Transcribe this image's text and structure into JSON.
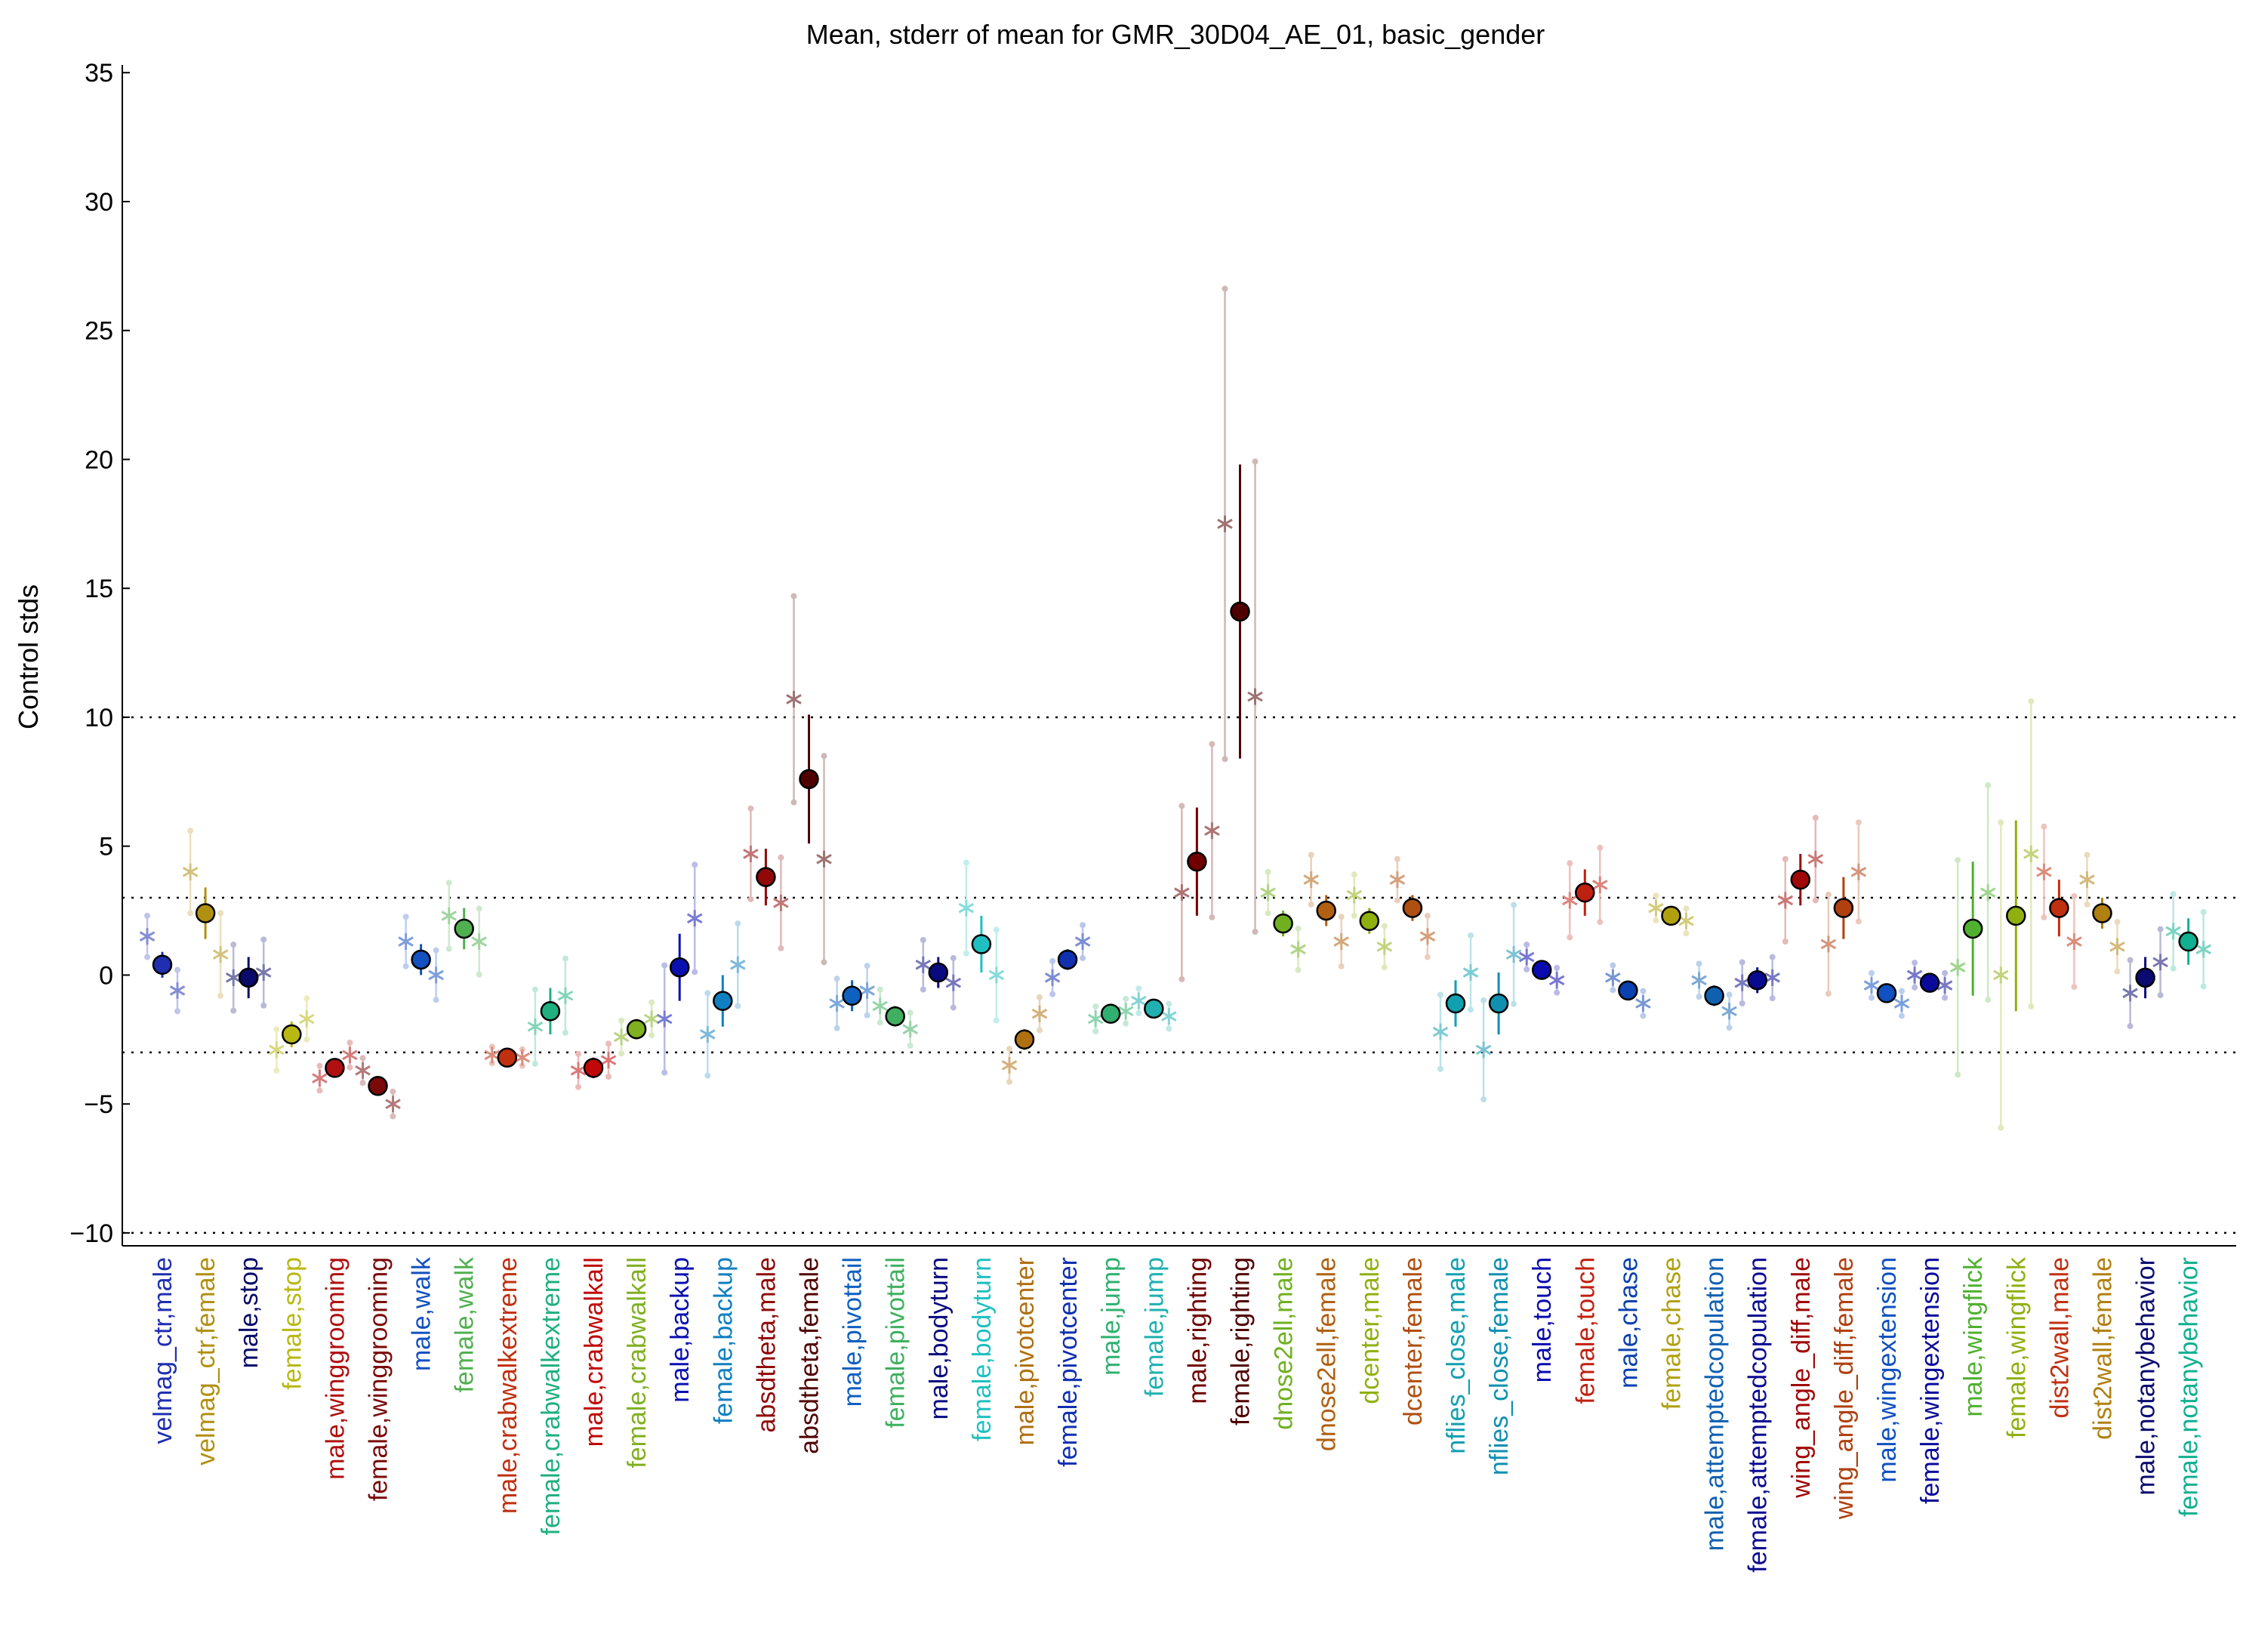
{
  "chart_data": {
    "type": "scatter",
    "title": "Mean, stderr of mean for GMR_30D04_AE_01, basic_gender",
    "xlabel": "",
    "ylabel": "Control stds",
    "ylim": [
      -10.5,
      35.3
    ],
    "yticks": [
      -10,
      -5,
      0,
      5,
      10,
      15,
      20,
      25,
      30,
      35
    ],
    "ytick_labels": [
      "−10",
      "−5",
      "0",
      "5",
      "10",
      "15",
      "20",
      "25",
      "30",
      "35"
    ],
    "reference_lines": [
      -10,
      -3,
      3,
      10
    ],
    "reference_line_style": "dotted",
    "grid": false,
    "legend": "none",
    "categories": [
      "velmag_ctr,male",
      "velmag_ctr,female",
      "male,stop",
      "female,stop",
      "male,winggrooming",
      "female,winggrooming",
      "male,walk",
      "female,walk",
      "male,crabwalkextreme",
      "female,crabwalkextreme",
      "male,crabwalkall",
      "female,crabwalkall",
      "male,backup",
      "female,backup",
      "absdtheta,male",
      "absdtheta,female",
      "male,pivottail",
      "female,pivottail",
      "male,bodyturn",
      "female,bodyturn",
      "male,pivotcenter",
      "female,pivotcenter",
      "male,jump",
      "female,jump",
      "male,righting",
      "female,righting",
      "dnose2ell,male",
      "dnose2ell,female",
      "dcenter,male",
      "dcenter,female",
      "nflies_close,male",
      "nflies_close,female",
      "male,touch",
      "female,touch",
      "male,chase",
      "female,chase",
      "male,attemptedcopulation",
      "female,attemptedcopulation",
      "wing_angle_diff,male",
      "wing_angle_diff,female",
      "male,wingextension",
      "female,wingextension",
      "male,wingflick",
      "female,wingflick",
      "dist2wall,male",
      "dist2wall,female",
      "male,notanybehavior",
      "female,notanybehavior"
    ],
    "colors": [
      "#1f2fb0",
      "#b09010",
      "#0a0a6a",
      "#b8b812",
      "#b01010",
      "#7a0a0a",
      "#1450c0",
      "#50b050",
      "#c03010",
      "#20b080",
      "#c00808",
      "#80b020",
      "#0a10b0",
      "#1080c0",
      "#900808",
      "#500000",
      "#1060c0",
      "#40b060",
      "#0a0a80",
      "#20c0c0",
      "#b07010",
      "#1030b0",
      "#30b070",
      "#20b0b0",
      "#700000",
      "#500000",
      "#70b020",
      "#b06010",
      "#90b010",
      "#b05010",
      "#10a0b0",
      "#1090b0",
      "#0a0ab0",
      "#c02010",
      "#0a40b0",
      "#b0a010",
      "#1060b0",
      "#0a0a90",
      "#a00808",
      "#b04010",
      "#1050c0",
      "#0a0a9a",
      "#50b030",
      "#90b010",
      "#c03010",
      "#b08010",
      "#0a0a70",
      "#10b090"
    ],
    "series": [
      {
        "name": "",
        "values": [
          0.4,
          2.4,
          -0.1,
          -2.3,
          -3.6,
          -4.3,
          0.6,
          1.8,
          -3.2,
          -1.4,
          -3.6,
          -2.1,
          0.3,
          -1.0,
          3.8,
          7.6,
          -0.8,
          -1.6,
          0.1,
          1.2,
          -2.5,
          0.6,
          -1.5,
          -1.3,
          4.4,
          14.1,
          2.0,
          2.5,
          2.1,
          2.6,
          -1.1,
          -1.1,
          0.2,
          3.2,
          -0.6,
          2.3,
          -0.8,
          -0.2,
          3.7,
          2.6,
          -0.7,
          -0.3,
          1.8,
          2.3,
          2.6,
          2.4,
          -0.1,
          1.3
        ]
      },
      {
        "name": "",
        "values": [
          1.5,
          4.0,
          -0.1,
          -2.9,
          -4.0,
          -3.7,
          1.3,
          2.3,
          -3.1,
          -2.0,
          -3.7,
          -2.4,
          -1.7,
          -2.3,
          4.7,
          10.7,
          -1.1,
          -1.2,
          0.4,
          2.6,
          -3.5,
          -0.1,
          -1.7,
          -1.0,
          3.2,
          17.5,
          3.2,
          3.7,
          3.1,
          3.7,
          -2.2,
          -2.9,
          0.7,
          2.9,
          -0.1,
          2.6,
          -0.2,
          -0.3,
          2.9,
          1.2,
          -0.4,
          0.0,
          0.3,
          0.0,
          4.0,
          3.7,
          -0.7,
          1.7
        ]
      },
      {
        "name": "",
        "values": [
          -0.6,
          0.8,
          0.1,
          -1.7,
          -3.1,
          -5.0,
          0.0,
          1.3,
          -3.2,
          -0.8,
          -3.3,
          -1.7,
          2.2,
          0.4,
          2.8,
          4.5,
          -0.6,
          -2.1,
          -0.3,
          0.0,
          -1.5,
          1.3,
          -1.4,
          -1.6,
          5.6,
          10.8,
          1.0,
          1.3,
          1.1,
          1.5,
          0.1,
          0.8,
          -0.2,
          3.5,
          -1.1,
          2.1,
          -1.4,
          -0.1,
          4.5,
          4.0,
          -1.1,
          -0.4,
          3.2,
          4.7,
          1.3,
          1.1,
          0.5,
          1.0
        ]
      }
    ],
    "stderr": [
      0.5,
      1.0,
      0.8,
      0.5,
      0.3,
      0.3,
      0.6,
      0.8,
      0.2,
      0.9,
      0.4,
      0.4,
      1.3,
      1.0,
      1.1,
      2.5,
      0.6,
      0.4,
      0.6,
      1.1,
      0.4,
      0.4,
      0.3,
      0.3,
      2.1,
      5.7,
      0.5,
      0.6,
      0.5,
      0.5,
      0.9,
      1.2,
      0.3,
      0.9,
      0.3,
      0.3,
      0.4,
      0.5,
      1.0,
      1.2,
      0.3,
      0.3,
      2.6,
      3.7,
      1.1,
      0.6,
      0.8,
      0.9
    ]
  }
}
